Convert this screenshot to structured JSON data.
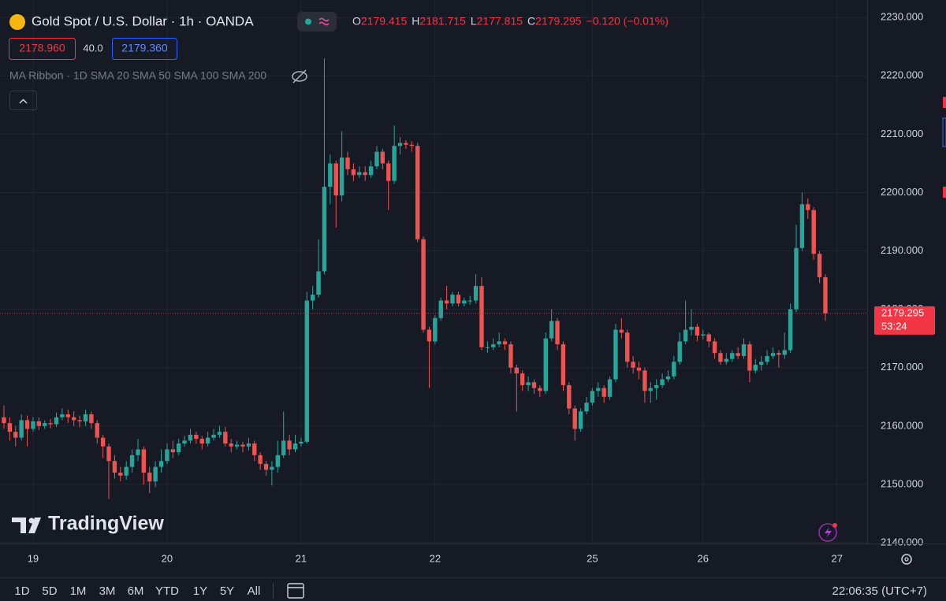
{
  "header": {
    "symbol": "Gold Spot / U.S. Dollar · 1h · OANDA",
    "ohlc": [
      {
        "key": "O",
        "value": "2179.415"
      },
      {
        "key": "H",
        "value": "2181.715"
      },
      {
        "key": "L",
        "value": "2177.815"
      },
      {
        "key": "C",
        "value": "2179.295"
      }
    ],
    "change": "−0.120 (−0.01%)"
  },
  "trade": {
    "sell": "2178.960",
    "spread": "40.0",
    "buy": "2179.360"
  },
  "indicator": "MA Ribbon · 1D SMA 20 SMA 50 SMA 100 SMA 200",
  "watermark": "TradingView",
  "countdown": "53:24",
  "ranges": [
    "1D",
    "5D",
    "1M",
    "3M",
    "6M",
    "YTD",
    "1Y",
    "5Y",
    "All"
  ],
  "clock": "22:06:35 (UTC+7)",
  "chart_data": {
    "type": "candlestick",
    "categories": [
      null,
      null,
      null,
      null,
      null,
      "19",
      null,
      null,
      null,
      null,
      null,
      null,
      null,
      null,
      null,
      null,
      null,
      null,
      null,
      null,
      null,
      null,
      null,
      null,
      null,
      null,
      null,
      null,
      "20",
      null,
      null,
      null,
      null,
      null,
      null,
      null,
      null,
      null,
      null,
      null,
      null,
      null,
      null,
      null,
      null,
      null,
      null,
      null,
      null,
      null,
      null,
      "21",
      null,
      null,
      null,
      null,
      null,
      null,
      null,
      null,
      null,
      null,
      null,
      null,
      null,
      null,
      null,
      null,
      null,
      null,
      null,
      null,
      null,
      null,
      "22",
      null,
      null,
      null,
      null,
      null,
      null,
      null,
      null,
      null,
      null,
      null,
      null,
      null,
      null,
      null,
      null,
      null,
      null,
      null,
      null,
      null,
      null,
      null,
      null,
      null,
      null,
      "25",
      null,
      null,
      null,
      null,
      null,
      null,
      null,
      null,
      null,
      null,
      null,
      null,
      null,
      null,
      null,
      null,
      null,
      null,
      "26",
      null,
      null,
      null,
      null,
      null,
      null,
      null,
      null,
      null,
      null,
      null,
      null,
      null,
      null,
      null,
      null,
      null,
      null,
      null,
      null,
      null,
      null,
      "27"
    ],
    "open": [
      2161.5,
      2160.5,
      2159,
      2158,
      2161,
      2159.5,
      2160.8,
      2160,
      2160.5,
      2160.3,
      2161.5,
      2162,
      2161.5,
      2161,
      2160.8,
      2162,
      2160.5,
      2158,
      2156.5,
      2154,
      2152,
      2151.5,
      2153,
      2155,
      2156,
      2152,
      2150.5,
      2153,
      2154,
      2156,
      2155.5,
      2157,
      2157.5,
      2158.5,
      2157.8,
      2157,
      2158,
      2158.5,
      2159,
      2157,
      2156.5,
      2156.8,
      2156.5,
      2157,
      2155,
      2153.5,
      2152.5,
      2153,
      2155,
      2157.5,
      2156,
      2157,
      2157.3,
      2181.5,
      2182.5,
      2186.5,
      2201,
      2205,
      2199.5,
      2206,
      2204,
      2203,
      2203.5,
      2203,
      2204.5,
      2207,
      2205,
      2202,
      2208,
      2208.5,
      2208.2,
      2208,
      2192,
      2176.5,
      2174.5,
      2178.5,
      2181.5,
      2181,
      2182.5,
      2181,
      2181.5,
      2181.5,
      2184,
      2173.5,
      2173.5,
      2174,
      2174.5,
      2174,
      2170,
      2169,
      2167,
      2167.5,
      2166.5,
      2166,
      2175,
      2178,
      2174,
      2167,
      2163,
      2159.5,
      2162.5,
      2164,
      2166,
      2166.5,
      2165,
      2168,
      2176.5,
      2176,
      2171,
      2170,
      2169.5,
      2166,
      2166.5,
      2167,
      2168,
      2168.5,
      2171,
      2174.5,
      2176.5,
      2177,
      2175.5,
      2175.7,
      2174.5,
      2172.5,
      2171,
      2171.5,
      2172.5,
      2172,
      2174,
      2169.5,
      2170.5,
      2171,
      2172,
      2172.5,
      2172.2,
      2173,
      2180,
      2190.5,
      2198,
      2197,
      2189.5,
      2185.5,
      null,
      null
    ],
    "high": [
      2163.5,
      2161.5,
      2160,
      2162,
      2161.8,
      2161.5,
      2161.5,
      2161,
      2161.2,
      2162.3,
      2163,
      2162.8,
      2162.5,
      2161.8,
      2162.8,
      2162.5,
      2161,
      2158.5,
      2157,
      2155,
      2153,
      2154,
      2156,
      2157.8,
      2156.5,
      2153,
      2154,
      2156,
      2157,
      2157.5,
      2157.8,
      2158.3,
      2159.5,
      2159,
      2158.3,
      2159,
      2159.5,
      2160,
      2159.8,
      2157.8,
      2157.5,
      2157.3,
      2158,
      2157.5,
      2155.5,
      2154,
      2154,
      2157.5,
      2162.5,
      2158.5,
      2158.5,
      2158,
      2183,
      2184,
      2192,
      2223,
      2206.5,
      2205.5,
      2210.5,
      2207,
      2205,
      2204.5,
      2204.5,
      2205.5,
      2208,
      2207.5,
      2205.5,
      2211.5,
      2209.5,
      2209,
      2208.8,
      2208.5,
      2192.5,
      2177,
      2179,
      2182,
      2184,
      2183,
      2183,
      2182,
      2182.3,
      2186,
      2185.5,
      2174.5,
      2175,
      2176,
      2175,
      2174.5,
      2170.5,
      2169.5,
      2168.5,
      2168,
      2167,
      2176,
      2180,
      2178.5,
      2174.5,
      2167.5,
      2163.5,
      2163,
      2165,
      2166.5,
      2167.5,
      2167,
      2168.5,
      2177.5,
      2178.5,
      2176.5,
      2172,
      2171,
      2170,
      2167.5,
      2168,
      2169,
      2169.5,
      2172,
      2176,
      2181.5,
      2180,
      2177.5,
      2176.5,
      2176,
      2175,
      2173,
      2172.5,
      2173,
      2173.5,
      2175,
      2174.5,
      2171.5,
      2172,
      2173,
      2173.5,
      2173,
      2176,
      2181,
      2194.5,
      2200,
      2199,
      2197.5,
      2190,
      2186,
      null,
      null
    ],
    "low": [
      2159.5,
      2157.5,
      2156.5,
      2157.5,
      2156.5,
      2159,
      2159.3,
      2159.5,
      2159.6,
      2159.8,
      2161,
      2160.5,
      2160,
      2159.8,
      2160,
      2159.5,
      2157,
      2154.5,
      2147.5,
      2151,
      2150.5,
      2150.8,
      2152,
      2154,
      2150,
      2148.5,
      2149.5,
      2152,
      2153.5,
      2154.5,
      2155,
      2156.5,
      2157,
      2157,
      2156,
      2156.5,
      2157.5,
      2158,
      2156.5,
      2155.5,
      2156,
      2155.5,
      2155.8,
      2154,
      2152.5,
      2151.5,
      2149.8,
      2152,
      2154.5,
      2155,
      2155.5,
      2156.5,
      2157,
      2180,
      2182,
      2186,
      2198,
      2194,
      2198.5,
      2203,
      2202,
      2202.5,
      2202,
      2202.5,
      2204,
      2204,
      2197,
      2201.5,
      2206.5,
      2207.5,
      2207,
      2191.5,
      2176,
      2166.5,
      2174,
      2178,
      2180,
      2180.5,
      2180.5,
      2180.5,
      2180.8,
      2181,
      2173,
      2172.5,
      2173,
      2173.5,
      2173,
      2169,
      2162.5,
      2166,
      2166,
      2165.5,
      2165,
      2165.5,
      2174.5,
      2173,
      2166,
      2162,
      2157.5,
      2159,
      2162,
      2163.5,
      2165,
      2164,
      2164.5,
      2167.5,
      2175,
      2170,
      2169,
      2168,
      2164,
      2164,
      2164.5,
      2166.5,
      2167.5,
      2168,
      2170.5,
      2174,
      2175.5,
      2174.5,
      2174.8,
      2173.5,
      2171.5,
      2170.5,
      2170.5,
      2171,
      2171.5,
      2171.5,
      2167.5,
      2169,
      2169.5,
      2170.5,
      2171.5,
      2170,
      2171.5,
      2172.5,
      2179.5,
      2190,
      2195.5,
      2188.5,
      2184.5,
      2178,
      null,
      null
    ],
    "close": [
      2160.5,
      2159,
      2158,
      2161,
      2159.5,
      2160.8,
      2160,
      2160.5,
      2160.3,
      2161.5,
      2162,
      2161.5,
      2161,
      2160.8,
      2162,
      2160.5,
      2158,
      2156.5,
      2154,
      2152,
      2151.5,
      2153,
      2155,
      2156,
      2152,
      2150.5,
      2153,
      2154,
      2156,
      2155.5,
      2157,
      2157.5,
      2158.5,
      2157.8,
      2157,
      2158,
      2158.5,
      2159,
      2157,
      2156.5,
      2156.8,
      2156.5,
      2157,
      2155,
      2153.5,
      2152.5,
      2153,
      2155,
      2157.5,
      2156,
      2157,
      2157.3,
      2181.5,
      2182.5,
      2186.5,
      2201,
      2205,
      2199.5,
      2206,
      2204,
      2203,
      2203.5,
      2203,
      2204.5,
      2207,
      2205,
      2202,
      2208,
      2208.5,
      2208.2,
      2208,
      2192,
      2176.5,
      2174.5,
      2178.5,
      2181.5,
      2181,
      2182.5,
      2181,
      2181.5,
      2181.5,
      2184,
      2173.5,
      2173.5,
      2174,
      2174.5,
      2174,
      2170,
      2169,
      2167,
      2167.5,
      2166.5,
      2166,
      2175,
      2178,
      2174,
      2167,
      2163,
      2159.5,
      2162.5,
      2164,
      2166,
      2166.5,
      2165,
      2168,
      2176.5,
      2176,
      2171,
      2170,
      2169.5,
      2166,
      2166.5,
      2167,
      2168,
      2168.5,
      2171,
      2174.5,
      2176.5,
      2177,
      2175.5,
      2175.7,
      2174.5,
      2172.5,
      2171,
      2171.5,
      2172.5,
      2172,
      2174,
      2169.5,
      2170.5,
      2171,
      2172,
      2172.5,
      2172.2,
      2173,
      2180,
      2190.5,
      2198,
      2197,
      2189.5,
      2185.5,
      2179.295,
      null,
      null
    ],
    "ylim": [
      2140,
      2233
    ],
    "yticks": [
      {
        "value": 2140,
        "label": "2140.000"
      },
      {
        "value": 2150,
        "label": "2150.000"
      },
      {
        "value": 2160,
        "label": "2160.000"
      },
      {
        "value": 2170,
        "label": "2170.000"
      },
      {
        "value": 2180,
        "label": "2180.000"
      },
      {
        "value": 2190,
        "label": "2190.000"
      },
      {
        "value": 2200,
        "label": "2200.000"
      },
      {
        "value": 2210,
        "label": "2210.000"
      },
      {
        "value": 2220,
        "label": "2220.000"
      },
      {
        "value": 2230,
        "label": "2230.000"
      }
    ],
    "grid": true,
    "up_color": "#26a69a",
    "down_color": "#ef5350"
  }
}
